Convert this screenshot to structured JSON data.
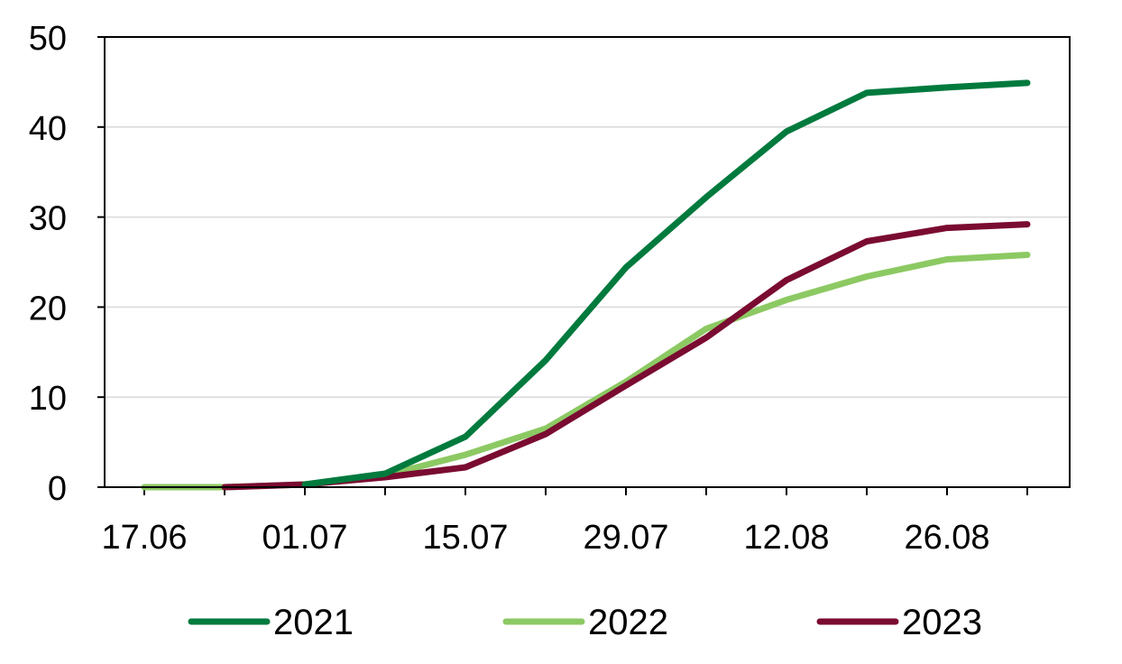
{
  "chart_data": {
    "type": "line",
    "title": "",
    "xlabel": "",
    "ylabel": "",
    "ylim": [
      0,
      50
    ],
    "yticks": [
      "0",
      "10",
      "20",
      "30",
      "40",
      "50"
    ],
    "xticks": [
      "17.06",
      "01.07",
      "15.07",
      "29.07",
      "12.08",
      "26.08"
    ],
    "x": [
      "17.06",
      "24.06",
      "01.07",
      "08.07",
      "15.07",
      "22.07",
      "29.07",
      "05.08",
      "12.08",
      "19.08",
      "26.08",
      "02.09"
    ],
    "grid": "horizontal",
    "legend_position": "bottom",
    "series": [
      {
        "name": "2021",
        "color": "#007A3D",
        "values": [
          null,
          null,
          0.3,
          1.5,
          5.6,
          14.1,
          24.4,
          32.2,
          39.5,
          43.8,
          44.4,
          44.9
        ]
      },
      {
        "name": "2022",
        "color": "#8CC963",
        "values": [
          0.0,
          0.0,
          0.3,
          1.3,
          3.6,
          6.5,
          11.7,
          17.6,
          20.8,
          23.4,
          25.3,
          25.8
        ]
      },
      {
        "name": "2023",
        "color": "#7A0B31",
        "values": [
          null,
          0.0,
          0.3,
          1.1,
          2.2,
          5.9,
          11.3,
          16.6,
          23.0,
          27.3,
          28.8,
          29.2
        ]
      }
    ]
  }
}
